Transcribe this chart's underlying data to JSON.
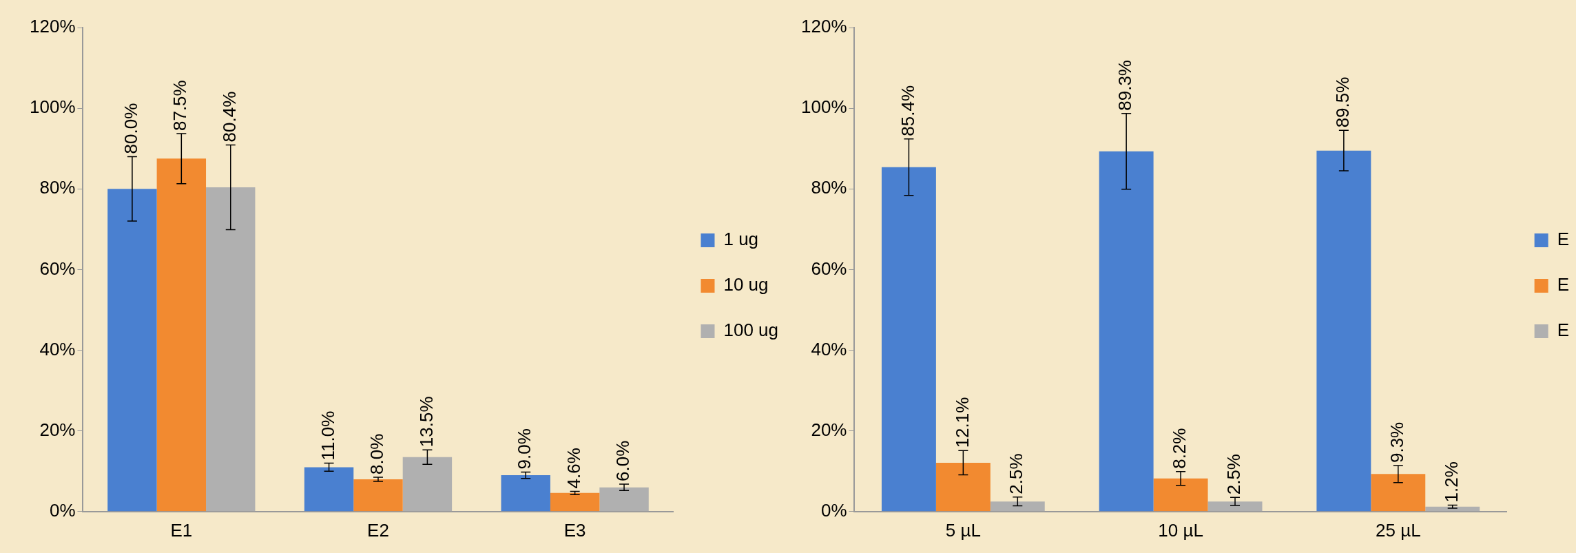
{
  "chart_data": [
    {
      "type": "bar",
      "categories": [
        "E1",
        "E2",
        "E3"
      ],
      "series": [
        {
          "name": "1 ug",
          "color": "#4a80d0",
          "values": [
            80.0,
            11.0,
            9.0
          ],
          "errors": [
            8,
            1,
            0.8
          ],
          "value_labels": [
            "80.0%",
            "11.0%",
            "9.0%"
          ]
        },
        {
          "name": "10 ug",
          "color": "#f28a30",
          "values": [
            87.5,
            8.0,
            4.6
          ],
          "errors": [
            6.2,
            0.5,
            0.4
          ],
          "value_labels": [
            "87.5%",
            "8.0%",
            "4.6%"
          ]
        },
        {
          "name": "100 ug",
          "color": "#b0b0b0",
          "values": [
            80.4,
            13.5,
            6.0
          ],
          "errors": [
            10.5,
            1.8,
            0.8
          ],
          "value_labels": [
            "80.4%",
            "13.5%",
            "6.0%"
          ]
        }
      ],
      "ylim": [
        0,
        120
      ],
      "yticks": [
        {
          "value": 0,
          "label": "0%"
        },
        {
          "value": 20,
          "label": "20%"
        },
        {
          "value": 40,
          "label": "40%"
        },
        {
          "value": 60,
          "label": "60%"
        },
        {
          "value": 80,
          "label": "80%"
        },
        {
          "value": 100,
          "label": "100%"
        },
        {
          "value": 120,
          "label": "120%"
        }
      ],
      "grid": false,
      "legend": "right"
    },
    {
      "type": "bar",
      "categories": [
        "5 µL",
        "10 µL",
        "25 µL"
      ],
      "series": [
        {
          "name": "E",
          "color": "#4a80d0",
          "values": [
            85.4,
            89.3,
            89.5
          ],
          "errors": [
            7,
            9.4,
            5
          ],
          "value_labels": [
            "85.4%",
            "89.3%",
            "89.5%"
          ]
        },
        {
          "name": "E",
          "color": "#f28a30",
          "values": [
            12.1,
            8.2,
            9.3
          ],
          "errors": [
            3,
            1.7,
            2.1
          ],
          "value_labels": [
            "12.1%",
            "8.2%",
            "9.3%"
          ]
        },
        {
          "name": "E",
          "color": "#b0b0b0",
          "values": [
            2.5,
            2.5,
            1.2
          ],
          "errors": [
            1.1,
            1,
            0.4
          ],
          "value_labels": [
            "2.5%",
            "2.5%",
            "1.2%"
          ]
        }
      ],
      "ylim": [
        0,
        120
      ],
      "yticks": [
        {
          "value": 0,
          "label": "0%"
        },
        {
          "value": 20,
          "label": "20%"
        },
        {
          "value": 40,
          "label": "40%"
        },
        {
          "value": 60,
          "label": "60%"
        },
        {
          "value": 80,
          "label": "80%"
        },
        {
          "value": 100,
          "label": "100%"
        },
        {
          "value": 120,
          "label": "120%"
        }
      ],
      "grid": false,
      "legend": "right"
    }
  ]
}
